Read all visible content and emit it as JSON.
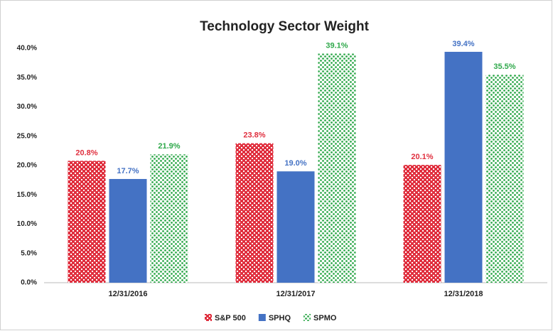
{
  "chart_data": {
    "type": "bar",
    "title": "Technology Sector Weight",
    "categories": [
      "12/31/2016",
      "12/31/2017",
      "12/31/2018"
    ],
    "series": [
      {
        "name": "S&P 500",
        "color": "#e0303f",
        "pattern": "checker",
        "values": [
          20.8,
          23.8,
          20.1
        ],
        "value_labels": [
          "20.8%",
          "23.8%",
          "20.1%"
        ]
      },
      {
        "name": "SPHQ",
        "color": "#4472c4",
        "pattern": "solid",
        "values": [
          17.7,
          19.0,
          39.4
        ],
        "value_labels": [
          "17.7%",
          "19.0%",
          "39.4%"
        ]
      },
      {
        "name": "SPMO",
        "color": "#2ea84a",
        "pattern": "dots",
        "values": [
          21.9,
          39.1,
          35.5
        ],
        "value_labels": [
          "21.9%",
          "39.1%",
          "35.5%"
        ]
      }
    ],
    "ylim": [
      0,
      40
    ],
    "yticks": [
      {
        "value": 0,
        "label": "0.0%"
      },
      {
        "value": 5,
        "label": "5.0%"
      },
      {
        "value": 10,
        "label": "10.0%"
      },
      {
        "value": 15,
        "label": "15.0%"
      },
      {
        "value": 20,
        "label": "20.0%"
      },
      {
        "value": 25,
        "label": "25.0%"
      },
      {
        "value": 30,
        "label": "30.0%"
      },
      {
        "value": 35,
        "label": "35.0%"
      },
      {
        "value": 40,
        "label": "40.0%"
      }
    ],
    "grid": false,
    "legend": "bottom"
  }
}
